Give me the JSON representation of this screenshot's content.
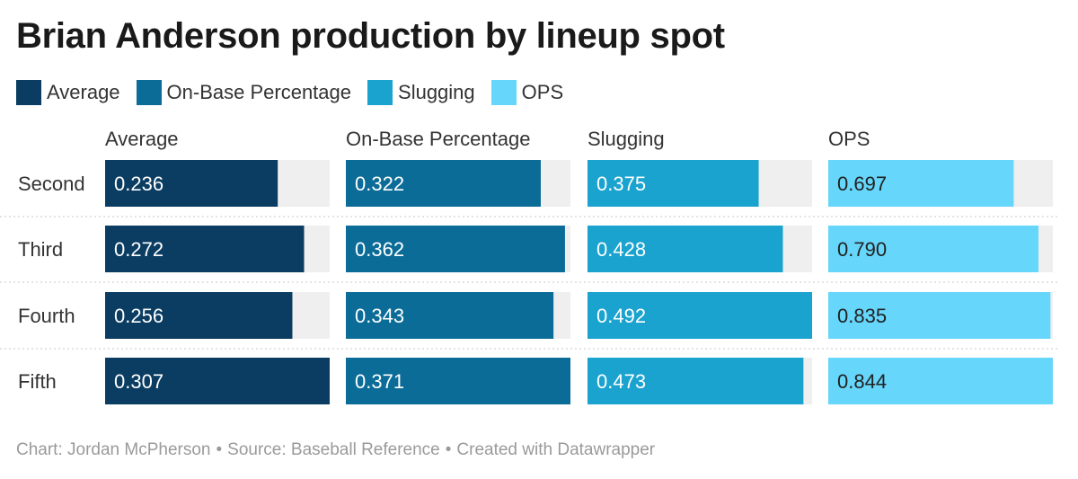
{
  "title": "Brian Anderson production by lineup spot",
  "footer": {
    "chart_credit": "Chart: Jordan McPherson",
    "source": "Source: Baseball Reference",
    "created_with": "Created with Datawrapper",
    "separator": "•"
  },
  "colors": {
    "Average": "#0b3d62",
    "On-Base Percentage": "#0b6c98",
    "Slugging": "#1aa3cf",
    "OPS": "#66d6fb",
    "track": "#efefef",
    "row_divider": "#c9c9c9"
  },
  "chart_data": {
    "type": "bar",
    "orientation": "horizontal",
    "layout": "small-multiples",
    "categories": [
      "Second",
      "Third",
      "Fourth",
      "Fifth"
    ],
    "series": [
      {
        "name": "Average",
        "values": [
          0.236,
          0.272,
          0.256,
          0.307
        ],
        "labels": [
          "0.236",
          "0.272",
          "0.256",
          "0.307"
        ]
      },
      {
        "name": "On-Base Percentage",
        "values": [
          0.322,
          0.362,
          0.343,
          0.371
        ],
        "labels": [
          "0.322",
          "0.362",
          "0.343",
          "0.371"
        ]
      },
      {
        "name": "Slugging",
        "values": [
          0.375,
          0.428,
          0.492,
          0.473
        ],
        "labels": [
          "0.375",
          "0.428",
          "0.492",
          "0.473"
        ]
      },
      {
        "name": "OPS",
        "values": [
          0.697,
          0.79,
          0.835,
          0.844
        ],
        "labels": [
          "0.697",
          "0.790",
          "0.835",
          "0.844"
        ]
      }
    ],
    "legend_position": "top-left",
    "grid": false
  }
}
